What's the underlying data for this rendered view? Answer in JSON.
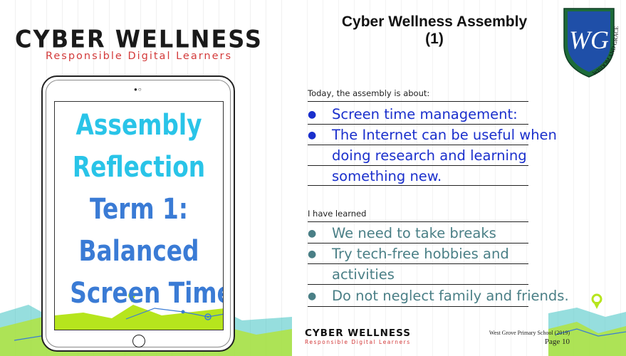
{
  "left_panel": {
    "brand_title": "CYBER WELLNESS",
    "brand_subtitle": "Responsible Digital Learners",
    "tablet_screen_lines": [
      "Assembly",
      "Reflection",
      "Term 1:",
      "Balanced",
      "Screen Time"
    ],
    "colors": {
      "cyan": "#29c4e8",
      "blue": "#3a7bd5",
      "red": "#d33a3a",
      "lime": "#b6e51d",
      "teal_wave": "#3fc2c2"
    }
  },
  "right_panel": {
    "title_line1": "Cyber Wellness Assembly",
    "title_line2": "(1)",
    "crest_motto": "WISDOM AND GRACE",
    "crest_initials": "WG",
    "about_label": "Today, the assembly is about:",
    "about_items": [
      {
        "lines": [
          "Screen time management:"
        ]
      },
      {
        "lines": [
          "The Internet can be useful when",
          "doing research and learning",
          "something new."
        ]
      }
    ],
    "learned_label": "I have learned",
    "learned_items": [
      {
        "lines": [
          "We need to take breaks"
        ]
      },
      {
        "lines": [
          "Try tech-free hobbies and",
          "activities"
        ]
      },
      {
        "lines": [
          "Do not neglect family and friends."
        ]
      }
    ],
    "bullet_glyph": "●",
    "footer": {
      "brand_title": "CYBER WELLNESS",
      "brand_subtitle": "Responsible Digital Learners",
      "school": "West Grove Primary School (2019)",
      "page": "Page 10"
    }
  }
}
